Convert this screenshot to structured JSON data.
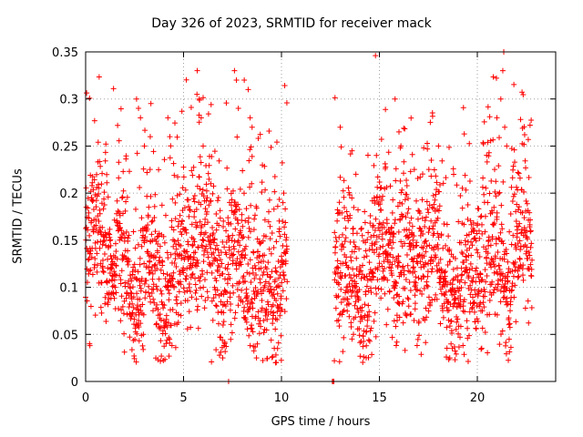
{
  "chart_data": {
    "type": "scatter",
    "title": "Day 326 of 2023, SRMTID for receiver mack",
    "xlabel": "GPS time / hours",
    "ylabel": "SRMTID / TECUs",
    "xlim": [
      0,
      24
    ],
    "ylim": [
      0,
      0.35
    ],
    "xticks": [
      0,
      5,
      10,
      15,
      20
    ],
    "yticks": [
      0,
      0.05,
      0.1,
      0.15,
      0.2,
      0.25,
      0.3,
      0.35
    ],
    "xtick_labels": [
      "0",
      "5",
      "10",
      "15",
      "20"
    ],
    "ytick_labels": [
      "0",
      "0.05",
      "0.1",
      "0.15",
      "0.2",
      "0.25",
      "0.3",
      "0.35"
    ],
    "grid": true,
    "marker": "+",
    "color": "#ff0000",
    "segments": [
      {
        "x_start": 0.0,
        "x_end": 10.3,
        "baseline": 0.12,
        "spread": 0.04
      },
      {
        "x_start": 12.6,
        "x_end": 12.7,
        "baseline": 0.0,
        "spread": 0.0
      },
      {
        "x_start": 12.7,
        "x_end": 22.8,
        "baseline": 0.12,
        "spread": 0.04
      }
    ],
    "spikes": [
      {
        "x": 2.6,
        "y": 0.3
      },
      {
        "x": 2.7,
        "y": 0.29
      },
      {
        "x": 2.8,
        "y": 0.28
      },
      {
        "x": 3.0,
        "y": 0.25
      },
      {
        "x": 3.3,
        "y": 0.26
      },
      {
        "x": 4.2,
        "y": 0.28
      },
      {
        "x": 4.3,
        "y": 0.26
      },
      {
        "x": 5.7,
        "y": 0.33
      },
      {
        "x": 5.8,
        "y": 0.3
      },
      {
        "x": 5.9,
        "y": 0.28
      },
      {
        "x": 6.0,
        "y": 0.25
      },
      {
        "x": 7.6,
        "y": 0.33
      },
      {
        "x": 7.7,
        "y": 0.32
      },
      {
        "x": 7.8,
        "y": 0.29
      },
      {
        "x": 8.1,
        "y": 0.32
      },
      {
        "x": 8.3,
        "y": 0.31
      },
      {
        "x": 8.4,
        "y": 0.28
      },
      {
        "x": 8.5,
        "y": 0.27
      },
      {
        "x": 13.0,
        "y": 0.27
      },
      {
        "x": 13.6,
        "y": 0.245
      },
      {
        "x": 15.8,
        "y": 0.3
      },
      {
        "x": 16.0,
        "y": 0.265
      },
      {
        "x": 16.1,
        "y": 0.25
      },
      {
        "x": 21.0,
        "y": 0.28
      },
      {
        "x": 21.2,
        "y": 0.3
      },
      {
        "x": 21.3,
        "y": 0.33
      },
      {
        "x": 21.35,
        "y": 0.35
      },
      {
        "x": 21.4,
        "y": 0.27
      },
      {
        "x": 21.5,
        "y": 0.25
      },
      {
        "x": 9.7,
        "y": 0.02
      },
      {
        "x": 9.8,
        "y": 0.035
      },
      {
        "x": 7.0,
        "y": 0.025
      },
      {
        "x": 0.2,
        "y": 0.04
      },
      {
        "x": 7.3,
        "y": 0.0
      }
    ]
  }
}
